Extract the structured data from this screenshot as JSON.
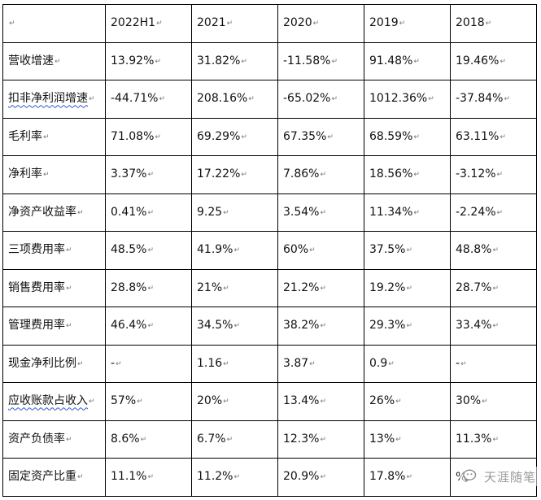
{
  "table": {
    "columns": [
      "",
      "2022H1",
      "2021",
      "2020",
      "2019",
      "2018"
    ],
    "rows": [
      {
        "label": "营收增速",
        "values": [
          "13.92%",
          "31.82%",
          "-11.58%",
          "91.48%",
          "19.46%"
        ]
      },
      {
        "label": "扣非净利润增速",
        "values": [
          "-44.71%",
          "208.16%",
          "-65.02%",
          "1012.36%",
          "-37.84%"
        ]
      },
      {
        "label": "毛利率",
        "values": [
          "71.08%",
          "69.29%",
          "67.35%",
          "68.59%",
          "63.11%"
        ]
      },
      {
        "label": "净利率",
        "values": [
          "3.37%",
          "17.22%",
          "7.86%",
          "18.56%",
          "-3.12%"
        ]
      },
      {
        "label": "净资产收益率",
        "values": [
          "0.41%",
          "9.25",
          "3.54%",
          "11.34%",
          "-2.24%"
        ]
      },
      {
        "label": "三项费用率",
        "values": [
          "48.5%",
          "41.9%",
          "60%",
          "37.5%",
          "48.8%"
        ]
      },
      {
        "label": "销售费用率",
        "values": [
          "28.8%",
          "21%",
          "21.2%",
          "19.2%",
          "28.7%"
        ]
      },
      {
        "label": "管理费用率",
        "values": [
          "46.4%",
          "34.5%",
          "38.2%",
          "29.3%",
          "33.4%"
        ]
      },
      {
        "label": "现金净利比例",
        "values": [
          "-",
          "1.16",
          "3.87",
          "0.9",
          "-"
        ]
      },
      {
        "label": "应收账款占收入",
        "values": [
          "57%",
          "20%",
          "13.4%",
          "26%",
          "30%"
        ]
      },
      {
        "label": "资产负债率",
        "values": [
          "8.6%",
          "6.7%",
          "12.3%",
          "13%",
          "11.3%"
        ]
      },
      {
        "label": "固定资产比重",
        "values": [
          "11.1%",
          "11.2%",
          "20.9%",
          "17.8%",
          "%"
        ]
      }
    ]
  },
  "watermark": {
    "text": "天涯随笔",
    "icon": "wechat-icon"
  }
}
